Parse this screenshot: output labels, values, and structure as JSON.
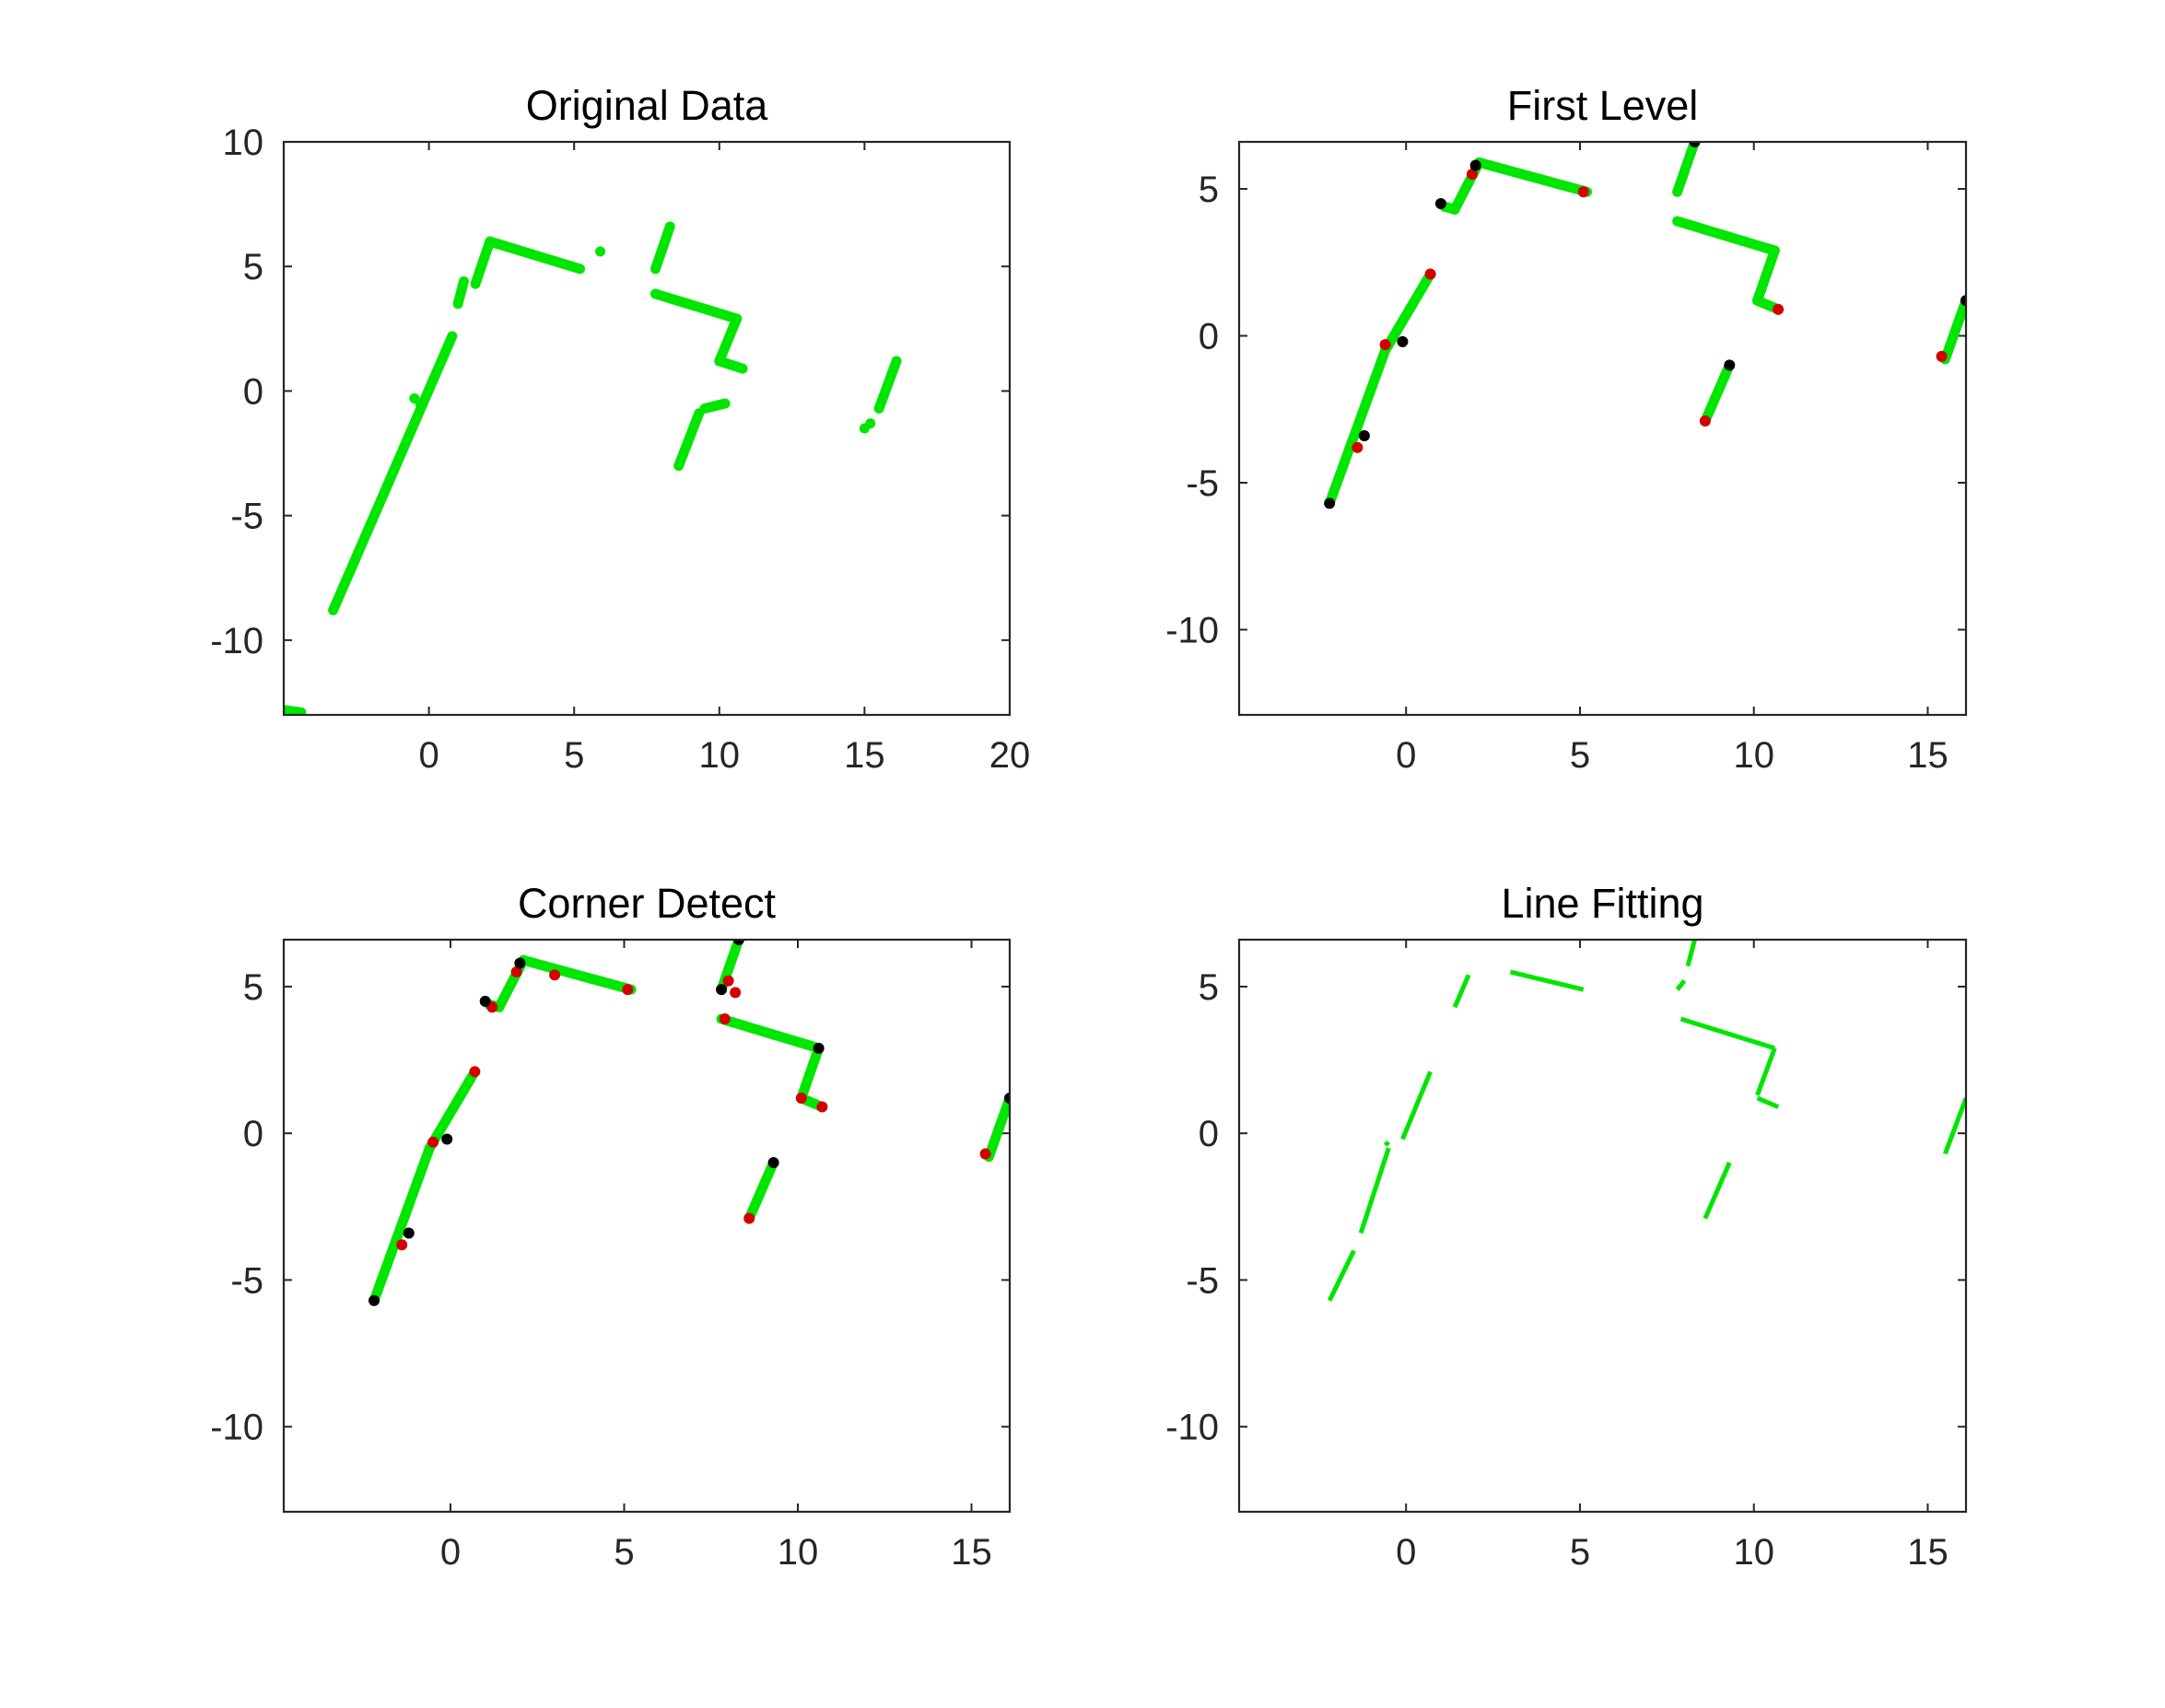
{
  "colors": {
    "points": "#00e600",
    "corner_red": "#d40000",
    "corner_black": "#000000",
    "axes": "#262626"
  },
  "chart_data": [
    {
      "type": "scatter",
      "title": "Original Data",
      "xlim": [
        -5,
        20
      ],
      "ylim": [
        -13,
        10
      ],
      "xticks": [
        0,
        5,
        10,
        15,
        20
      ],
      "yticks": [
        -10,
        -5,
        0,
        5,
        10
      ],
      "xtick_labels": [
        "0",
        "5",
        "10",
        "15",
        "20"
      ],
      "ytick_labels": [
        "-10",
        "-5",
        "0",
        "5",
        "10"
      ],
      "segments": [
        [
          [
            -5.0,
            -12.8
          ],
          [
            -4.4,
            -12.9
          ]
        ],
        [
          [
            -3.3,
            -8.8
          ],
          [
            0.8,
            2.2
          ]
        ],
        [
          [
            1.0,
            3.5
          ],
          [
            1.2,
            4.4
          ]
        ],
        [
          [
            1.6,
            4.3
          ],
          [
            2.1,
            6.0
          ]
        ],
        [
          [
            2.1,
            6.0
          ],
          [
            5.2,
            4.9
          ]
        ],
        [
          [
            7.8,
            4.9
          ],
          [
            8.3,
            6.6
          ]
        ],
        [
          [
            7.8,
            3.9
          ],
          [
            10.6,
            2.9
          ]
        ],
        [
          [
            10.6,
            2.9
          ],
          [
            10.0,
            1.2
          ]
        ],
        [
          [
            10.0,
            1.2
          ],
          [
            10.8,
            0.9
          ]
        ],
        [
          [
            8.6,
            -3.0
          ],
          [
            9.3,
            -0.9
          ]
        ],
        [
          [
            9.5,
            -0.7
          ],
          [
            10.2,
            -0.5
          ]
        ],
        [
          [
            15.5,
            -0.7
          ],
          [
            16.1,
            1.2
          ]
        ]
      ],
      "points": [
        [
          5.9,
          5.6
        ],
        [
          15.0,
          -1.5
        ],
        [
          15.2,
          -1.3
        ],
        [
          -0.5,
          -0.3
        ],
        [
          -0.3,
          -0.5
        ]
      ],
      "red_points": [],
      "black_points": []
    },
    {
      "type": "scatter",
      "title": "First Level",
      "xlim": [
        -4.8,
        16.1
      ],
      "ylim": [
        -12.9,
        6.6
      ],
      "xticks": [
        0,
        5,
        10,
        15
      ],
      "yticks": [
        -10,
        -5,
        0,
        5
      ],
      "xtick_labels": [
        "0",
        "5",
        "10",
        "15"
      ],
      "ytick_labels": [
        "-10",
        "-5",
        "0",
        "5"
      ],
      "segments": [
        [
          [
            -2.2,
            -5.7
          ],
          [
            -0.6,
            -0.5
          ]
        ],
        [
          [
            -0.6,
            -0.5
          ],
          [
            0.7,
            2.1
          ]
        ],
        [
          [
            1.1,
            4.4
          ],
          [
            1.4,
            4.3
          ]
        ],
        [
          [
            1.4,
            4.3
          ],
          [
            2.1,
            5.9
          ]
        ],
        [
          [
            2.1,
            5.9
          ],
          [
            5.2,
            4.9
          ]
        ],
        [
          [
            7.8,
            4.9
          ],
          [
            8.3,
            6.6
          ]
        ],
        [
          [
            7.8,
            3.9
          ],
          [
            10.6,
            2.9
          ]
        ],
        [
          [
            10.6,
            2.9
          ],
          [
            10.1,
            1.2
          ]
        ],
        [
          [
            10.1,
            1.2
          ],
          [
            10.7,
            0.9
          ]
        ],
        [
          [
            8.6,
            -2.9
          ],
          [
            9.3,
            -1.0
          ]
        ],
        [
          [
            15.5,
            -0.8
          ],
          [
            16.1,
            1.2
          ]
        ]
      ],
      "points": [],
      "red_points": [
        [
          -1.4,
          -3.8
        ],
        [
          -0.6,
          -0.3
        ],
        [
          0.7,
          2.1
        ],
        [
          1.9,
          5.5
        ],
        [
          5.1,
          4.9
        ],
        [
          10.7,
          0.9
        ],
        [
          8.6,
          -2.9
        ],
        [
          15.4,
          -0.7
        ]
      ],
      "black_points": [
        [
          -2.2,
          -5.7
        ],
        [
          -1.2,
          -3.4
        ],
        [
          -0.1,
          -0.2
        ],
        [
          1.0,
          4.5
        ],
        [
          2.0,
          5.8
        ],
        [
          8.3,
          6.6
        ],
        [
          9.3,
          -1.0
        ],
        [
          16.1,
          1.2
        ]
      ]
    },
    {
      "type": "scatter",
      "title": "Corner Detect",
      "xlim": [
        -4.8,
        16.1
      ],
      "ylim": [
        -12.9,
        6.6
      ],
      "xticks": [
        0,
        5,
        10,
        15
      ],
      "yticks": [
        -10,
        -5,
        0,
        5
      ],
      "xtick_labels": [
        "0",
        "5",
        "10",
        "15"
      ],
      "ytick_labels": [
        "-10",
        "-5",
        "0",
        "5"
      ],
      "segments": [
        [
          [
            -2.2,
            -5.7
          ],
          [
            -0.6,
            -0.5
          ]
        ],
        [
          [
            -0.6,
            -0.5
          ],
          [
            0.7,
            2.1
          ]
        ],
        [
          [
            1.1,
            4.4
          ],
          [
            1.4,
            4.3
          ]
        ],
        [
          [
            1.4,
            4.3
          ],
          [
            2.1,
            5.9
          ]
        ],
        [
          [
            2.1,
            5.9
          ],
          [
            5.2,
            4.9
          ]
        ],
        [
          [
            7.8,
            4.9
          ],
          [
            8.3,
            6.6
          ]
        ],
        [
          [
            7.8,
            3.9
          ],
          [
            10.6,
            2.9
          ]
        ],
        [
          [
            10.6,
            2.9
          ],
          [
            10.1,
            1.2
          ]
        ],
        [
          [
            10.1,
            1.2
          ],
          [
            10.7,
            0.9
          ]
        ],
        [
          [
            8.6,
            -2.9
          ],
          [
            9.3,
            -1.0
          ]
        ],
        [
          [
            15.5,
            -0.8
          ],
          [
            16.1,
            1.2
          ]
        ]
      ],
      "points": [],
      "red_points": [
        [
          -1.4,
          -3.8
        ],
        [
          -0.5,
          -0.3
        ],
        [
          0.7,
          2.1
        ],
        [
          1.2,
          4.3
        ],
        [
          1.9,
          5.5
        ],
        [
          3.0,
          5.4
        ],
        [
          5.1,
          4.9
        ],
        [
          8.0,
          5.2
        ],
        [
          8.2,
          4.8
        ],
        [
          7.9,
          3.9
        ],
        [
          10.1,
          1.2
        ],
        [
          10.7,
          0.9
        ],
        [
          8.6,
          -2.9
        ],
        [
          15.4,
          -0.7
        ]
      ],
      "black_points": [
        [
          -2.2,
          -5.7
        ],
        [
          -1.2,
          -3.4
        ],
        [
          -0.1,
          -0.2
        ],
        [
          1.0,
          4.5
        ],
        [
          2.0,
          5.8
        ],
        [
          7.8,
          4.9
        ],
        [
          8.3,
          6.6
        ],
        [
          10.6,
          2.9
        ],
        [
          9.3,
          -1.0
        ],
        [
          16.1,
          1.2
        ]
      ]
    },
    {
      "type": "line",
      "title": "Line Fitting",
      "xlim": [
        -4.8,
        16.1
      ],
      "ylim": [
        -12.9,
        6.6
      ],
      "xticks": [
        0,
        5,
        10,
        15
      ],
      "yticks": [
        -10,
        -5,
        0,
        5
      ],
      "xtick_labels": [
        "0",
        "5",
        "10",
        "15"
      ],
      "ytick_labels": [
        "-10",
        "-5",
        "0",
        "5"
      ],
      "lines": [
        [
          [
            -2.2,
            -5.7
          ],
          [
            -1.5,
            -4.0
          ]
        ],
        [
          [
            -1.3,
            -3.4
          ],
          [
            -0.5,
            -0.5
          ]
        ],
        [
          [
            -0.6,
            -0.3
          ],
          [
            -0.5,
            -0.4
          ]
        ],
        [
          [
            -0.1,
            -0.2
          ],
          [
            0.7,
            2.1
          ]
        ],
        [
          [
            1.4,
            4.3
          ],
          [
            1.8,
            5.4
          ]
        ],
        [
          [
            3.0,
            5.5
          ],
          [
            5.1,
            4.9
          ]
        ],
        [
          [
            7.8,
            4.9
          ],
          [
            8.0,
            5.2
          ]
        ],
        [
          [
            8.1,
            5.7
          ],
          [
            8.3,
            6.6
          ]
        ],
        [
          [
            7.9,
            3.9
          ],
          [
            10.6,
            2.9
          ]
        ],
        [
          [
            10.6,
            2.9
          ],
          [
            10.1,
            1.3
          ]
        ],
        [
          [
            10.1,
            1.2
          ],
          [
            10.7,
            0.9
          ]
        ],
        [
          [
            8.6,
            -2.9
          ],
          [
            9.3,
            -1.0
          ]
        ],
        [
          [
            15.5,
            -0.7
          ],
          [
            16.1,
            1.2
          ]
        ]
      ],
      "segments": [],
      "points": [],
      "red_points": [],
      "black_points": []
    }
  ]
}
